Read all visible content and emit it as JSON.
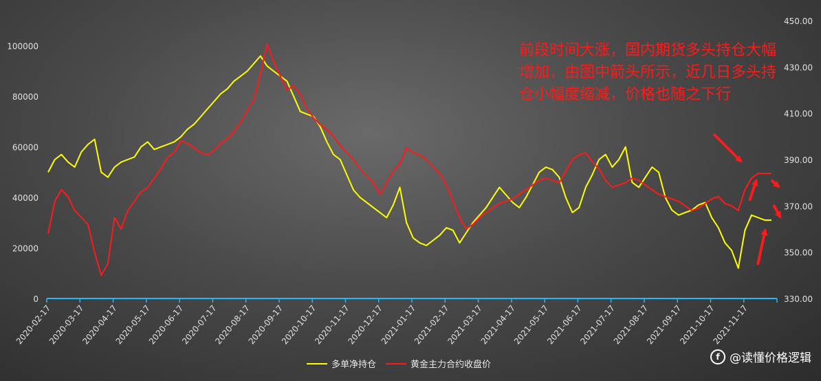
{
  "chart_data": {
    "type": "line",
    "title": "",
    "x_tick_labels": [
      "2020-02-17",
      "2020-03-17",
      "2020-04-17",
      "2020-05-17",
      "2020-06-17",
      "2020-07-17",
      "2020-08-17",
      "2020-09-17",
      "2020-10-17",
      "2020-11-17",
      "2020-12-17",
      "2021-01-17",
      "2021-02-17",
      "2021-03-17",
      "2021-04-17",
      "2021-05-17",
      "2021-06-17",
      "2021-07-17",
      "2021-08-17",
      "2021-09-17",
      "2021-10-17",
      "2021-11-17"
    ],
    "y_left_ticks": [
      "0",
      "20000",
      "40000",
      "60000",
      "80000",
      "100000"
    ],
    "y_left_range": [
      0,
      110000
    ],
    "y_right_ticks": [
      "330.00",
      "350.00",
      "370.00",
      "390.00",
      "410.00",
      "430.00",
      "450.00"
    ],
    "y_right_range": [
      330,
      450
    ],
    "series": [
      {
        "name": "多单净持仓",
        "color": "#ffff00",
        "axis": "left",
        "values": [
          50000,
          55000,
          57000,
          54000,
          52000,
          58000,
          61000,
          63000,
          50000,
          48000,
          52000,
          54000,
          55000,
          56000,
          60000,
          62000,
          59000,
          60000,
          61000,
          62000,
          64000,
          67000,
          69000,
          72000,
          75000,
          78000,
          81000,
          83000,
          86000,
          88000,
          90000,
          93000,
          96000,
          92000,
          90000,
          88000,
          86000,
          80000,
          74000,
          73000,
          72000,
          68000,
          62000,
          57000,
          55000,
          49000,
          43000,
          40000,
          38000,
          36000,
          34000,
          32000,
          37000,
          44000,
          30000,
          24000,
          22000,
          21000,
          23000,
          25000,
          28000,
          27000,
          22000,
          26000,
          30000,
          33000,
          36000,
          40000,
          44000,
          41000,
          38000,
          36000,
          40000,
          45000,
          50000,
          52000,
          51000,
          48000,
          40000,
          34000,
          36000,
          44000,
          49000,
          55000,
          57000,
          52000,
          55000,
          60000,
          46000,
          44000,
          48000,
          52000,
          50000,
          40000,
          35000,
          33000,
          34000,
          35000,
          37000,
          38000,
          32000,
          28000,
          22000,
          19000,
          12000,
          27000,
          33000,
          32000,
          31000,
          31000
        ]
      },
      {
        "name": "黄金主力合约收盘价",
        "color": "#ff1a1a",
        "axis": "right",
        "values": [
          358,
          372,
          377,
          374,
          368,
          365,
          362,
          350,
          340,
          345,
          365,
          360,
          368,
          372,
          376,
          378,
          382,
          386,
          391,
          393,
          398,
          397,
          395,
          393,
          392,
          394,
          397,
          399,
          402,
          406,
          411,
          416,
          427,
          440,
          432,
          426,
          420,
          422,
          418,
          412,
          408,
          405,
          403,
          400,
          396,
          393,
          390,
          386,
          383,
          380,
          375,
          380,
          385,
          388,
          395,
          393,
          392,
          390,
          387,
          384,
          379,
          372,
          365,
          360,
          362,
          365,
          367,
          369,
          371,
          372,
          373,
          375,
          377,
          379,
          381,
          382,
          381,
          380,
          385,
          390,
          392,
          393,
          389,
          386,
          381,
          378,
          379,
          380,
          382,
          381,
          379,
          377,
          375,
          374,
          373,
          372,
          370,
          368,
          369,
          371,
          373,
          374,
          371,
          370,
          368,
          377,
          382,
          384,
          384,
          384
        ]
      }
    ],
    "annotation": "前段时间大涨，国内期货多头持仓大幅增加，由图中箭头所示，近几日多头持仓小幅度缩减，价格也随之下行",
    "grid": false,
    "legend": "bottom"
  },
  "watermark": {
    "text": "@读懂价格逻辑",
    "logo_glyph": "f"
  }
}
